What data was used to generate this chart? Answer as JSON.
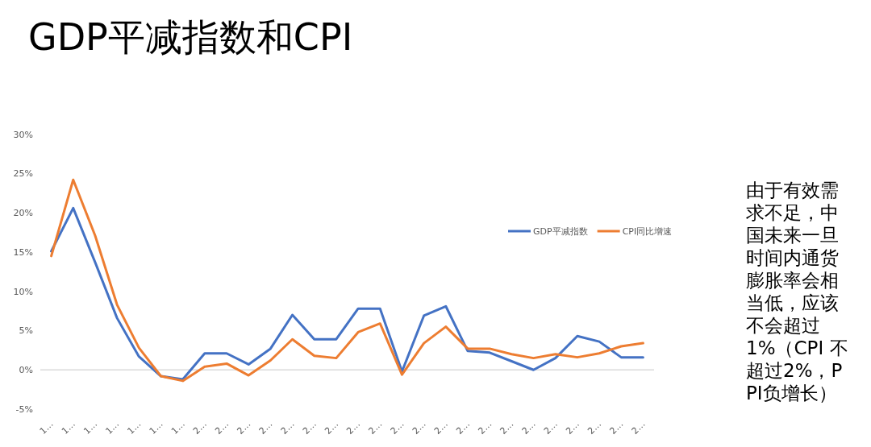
{
  "chart_data": {
    "type": "line",
    "title": "GDP平减指数和CPI",
    "categories": [
      "1…",
      "1…",
      "1…",
      "1…",
      "1…",
      "1…",
      "1…",
      "2…",
      "2…",
      "2…",
      "2…",
      "2…",
      "2…",
      "2…",
      "2…",
      "2…",
      "2…",
      "2…",
      "2…",
      "2…",
      "2…",
      "2…",
      "2…",
      "2…",
      "2…",
      "2…",
      "2…",
      "2…"
    ],
    "series": [
      {
        "name": "GDP平减指数",
        "color": "#4472c4",
        "values": [
          15.1,
          20.6,
          13.7,
          6.6,
          1.7,
          -0.8,
          -1.2,
          2.1,
          2.1,
          0.7,
          2.7,
          7.0,
          3.9,
          3.9,
          7.8,
          7.8,
          -0.2,
          6.9,
          8.1,
          2.4,
          2.2,
          1.1,
          0.0,
          1.5,
          4.3,
          3.6,
          1.6,
          1.6
        ]
      },
      {
        "name": "CPI同比增速",
        "color": "#ed7d31",
        "values": [
          14.5,
          24.2,
          17.1,
          8.3,
          2.8,
          -0.8,
          -1.4,
          0.4,
          0.8,
          -0.7,
          1.2,
          3.9,
          1.8,
          1.5,
          4.8,
          5.9,
          -0.6,
          3.4,
          5.5,
          2.7,
          2.7,
          2.0,
          1.5,
          2.0,
          1.6,
          2.1,
          3.0,
          3.4
        ]
      }
    ],
    "ylim": [
      -5,
      30
    ],
    "yticks": [
      {
        "value": -5,
        "label": "-5%"
      },
      {
        "value": 0,
        "label": "0%"
      },
      {
        "value": 5,
        "label": "5%"
      },
      {
        "value": 10,
        "label": "10%"
      },
      {
        "value": 15,
        "label": "15%"
      },
      {
        "value": 20,
        "label": "20%"
      },
      {
        "value": 25,
        "label": "25%"
      },
      {
        "value": 30,
        "label": "30%"
      }
    ],
    "ref_lines": [
      {
        "axis": "y",
        "value": 0,
        "color": "#d9d9d9"
      }
    ],
    "legend": "right",
    "marker": "none",
    "line_style": "solid",
    "annotations": [
      "由于有效需求不足，中国未来一旦时间内通货膨胀率会相当低，应该不会超过1%（CPI 不超过2%，PPI负增长）"
    ]
  }
}
